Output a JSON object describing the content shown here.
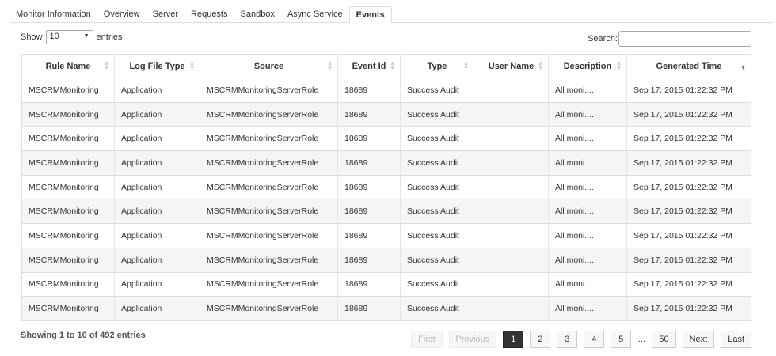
{
  "tabs": [
    "Monitor Information",
    "Overview",
    "Server",
    "Requests",
    "Sandbox",
    "Async Service",
    "Events"
  ],
  "active_tab": "Events",
  "length_control": {
    "show": "Show",
    "selected": "10",
    "entries": "entries"
  },
  "search": {
    "label": "Search:"
  },
  "table": {
    "columns": [
      "Rule Name",
      "Log File Type",
      "Source",
      "Event Id",
      "Type",
      "User Name",
      "Description",
      "Generated Time"
    ],
    "rows": [
      [
        "MSCRMMonitoring",
        "Application",
        "MSCRMMonitoringServerRole",
        "18689",
        "Success Audit",
        null,
        "All moni....",
        "Sep 17, 2015 01:22:32 PM"
      ],
      [
        "MSCRMMonitoring",
        "Application",
        "MSCRMMonitoringServerRole",
        "18689",
        "Success Audit",
        null,
        "All moni....",
        "Sep 17, 2015 01:22:32 PM"
      ],
      [
        "MSCRMMonitoring",
        "Application",
        "MSCRMMonitoringServerRole",
        "18689",
        "Success Audit",
        null,
        "All moni....",
        "Sep 17, 2015 01:22:32 PM"
      ],
      [
        "MSCRMMonitoring",
        "Application",
        "MSCRMMonitoringServerRole",
        "18689",
        "Success Audit",
        null,
        "All moni....",
        "Sep 17, 2015 01:22:32 PM"
      ],
      [
        "MSCRMMonitoring",
        "Application",
        "MSCRMMonitoringServerRole",
        "18689",
        "Success Audit",
        null,
        "All moni....",
        "Sep 17, 2015 01:22:32 PM"
      ],
      [
        "MSCRMMonitoring",
        "Application",
        "MSCRMMonitoringServerRole",
        "18689",
        "Success Audit",
        null,
        "All moni....",
        "Sep 17, 2015 01:22:32 PM"
      ],
      [
        "MSCRMMonitoring",
        "Application",
        "MSCRMMonitoringServerRole",
        "18689",
        "Success Audit",
        null,
        "All moni....",
        "Sep 17, 2015 01:22:32 PM"
      ],
      [
        "MSCRMMonitoring",
        "Application",
        "MSCRMMonitoringServerRole",
        "18689",
        "Success Audit",
        null,
        "All moni....",
        "Sep 17, 2015 01:22:32 PM"
      ],
      [
        "MSCRMMonitoring",
        "Application",
        "MSCRMMonitoringServerRole",
        "18689",
        "Success Audit",
        null,
        "All moni....",
        "Sep 17, 2015 01:22:32 PM"
      ],
      [
        "MSCRMMonitoring",
        "Application",
        "MSCRMMonitoringServerRole",
        "18689",
        "Success Audit",
        null,
        "All moni....",
        "Sep 17, 2015 01:22:32 PM"
      ]
    ]
  },
  "info": "Showing 1 to 10 of 492 entries",
  "pagination": [
    "First",
    "Previous",
    "1",
    "2",
    "3",
    "4",
    "5",
    "...",
    "50",
    "Next",
    "Last"
  ],
  "current_page": "1"
}
